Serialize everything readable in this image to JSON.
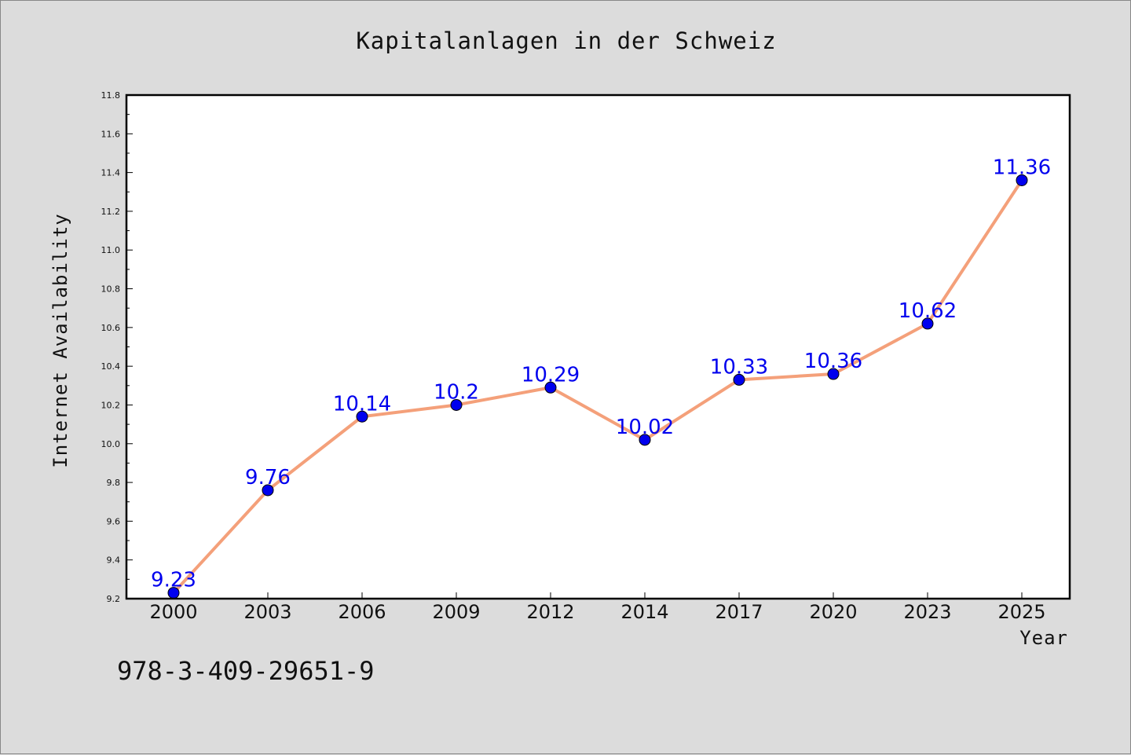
{
  "chart_data": {
    "type": "line",
    "title": "Kapitalanlagen in der Schweiz",
    "xlabel": "Year",
    "ylabel": "Internet Availability",
    "categories": [
      "2000",
      "2003",
      "2006",
      "2009",
      "2012",
      "2014",
      "2017",
      "2020",
      "2023",
      "2025"
    ],
    "series": [
      {
        "values": [
          9.23,
          9.76,
          10.14,
          10.2,
          10.29,
          10.02,
          10.33,
          10.36,
          10.62,
          11.36
        ],
        "labels": [
          "9.23",
          "9.76",
          "10.14",
          "10.2",
          "10.29",
          "10.02",
          "10.33",
          "10.36",
          "10.62",
          "11.36"
        ],
        "line_color": "#f4a07a",
        "marker_color": "#0000ee",
        "label_color": "#0000ee"
      }
    ],
    "ylim": [
      9.2,
      11.8
    ],
    "yticks": [
      "9.2",
      "9.4",
      "9.6",
      "9.8",
      "10.0",
      "10.2",
      "10.4",
      "10.6",
      "10.8",
      "11.0",
      "11.2",
      "11.4",
      "11.6",
      "11.8"
    ],
    "grid": false,
    "legend": "none"
  },
  "annotation": {
    "isbn": "978-3-409-29651-9"
  },
  "colors": {
    "background": "#dcdcdc",
    "plot_background": "#ffffff",
    "axis": "#000000"
  }
}
